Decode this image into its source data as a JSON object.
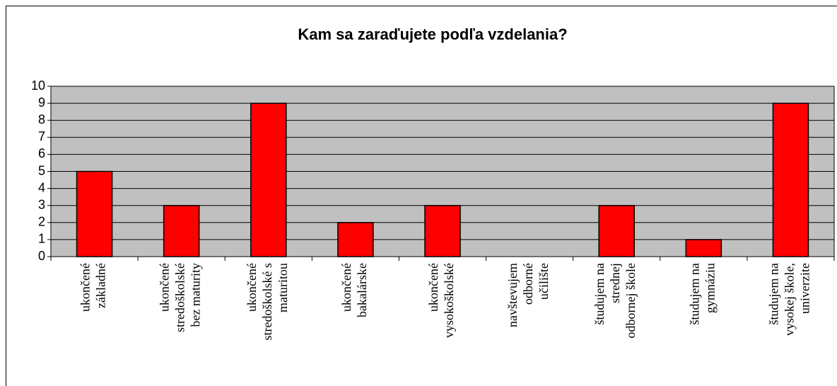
{
  "chart_data": {
    "type": "bar",
    "title": "Kam sa zaraďujete podľa vzdelania?",
    "categories": [
      "ukončené\nzákladné",
      "ukončené\nstredoškolské\nbez maturity",
      "ukončené\nstredoškolské s\nmaturitou",
      "ukončené\nbakalárske",
      "ukončené\nvysokoškolské",
      "navštevujem\nodborné\nučilište",
      "študujem na\nstrednej\nodbornej škole",
      "študujem na\ngymnáziu",
      "študujem na\nvysokej škole,\nuniverzite"
    ],
    "values": [
      5,
      3,
      9,
      2,
      3,
      0,
      3,
      1,
      9
    ],
    "color": "#ff0000",
    "ylim": [
      0,
      10
    ],
    "yticks": [
      0,
      1,
      2,
      3,
      4,
      5,
      6,
      7,
      8,
      9,
      10
    ],
    "grid": true
  }
}
